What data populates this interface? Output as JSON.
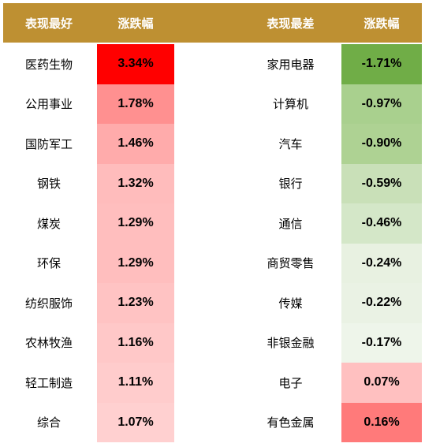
{
  "table": {
    "header": [
      "表现最好",
      "涨跌幅",
      "表现最差",
      "涨跌幅"
    ],
    "header_color": "#be9032",
    "rows": [
      [
        "医药生物",
        "3.34%",
        "家用电器",
        "-1.71%"
      ],
      [
        "公用事业",
        "1.78%",
        "计算机",
        "-0.97%"
      ],
      [
        "国防军工",
        "1.46%",
        "汽车",
        "-0.90%"
      ],
      [
        "钢铁",
        "1.32%",
        "银行",
        "-0.59%"
      ],
      [
        "煤炭",
        "1.29%",
        "通信",
        "-0.46%"
      ],
      [
        "环保",
        "1.29%",
        "商贸零售",
        "-0.24%"
      ],
      [
        "纺织服饰",
        "1.23%",
        "传媒",
        "-0.22%"
      ],
      [
        "农林牧渔",
        "1.16%",
        "非银金融",
        "-0.17%"
      ],
      [
        "轻工制造",
        "1.11%",
        "电子",
        "0.07%"
      ],
      [
        "综合",
        "1.07%",
        "有色金属",
        "0.16%"
      ]
    ],
    "best_colors": [
      "#ff0000",
      "#ff9090",
      "#ffabab",
      "#ffbcbc",
      "#ffbebe",
      "#ffbebe",
      "#ffc3c3",
      "#ffc8c8",
      "#ffcccc",
      "#ffd0d0"
    ],
    "worst_colors": [
      "#70ad47",
      "#a9d08e",
      "#aed293",
      "#c9e0b8",
      "#d4e7c8",
      "#e8f1e1",
      "#eaf2e4",
      "#eef5ea",
      "#ffc0c0",
      "#ff7a7a"
    ]
  }
}
